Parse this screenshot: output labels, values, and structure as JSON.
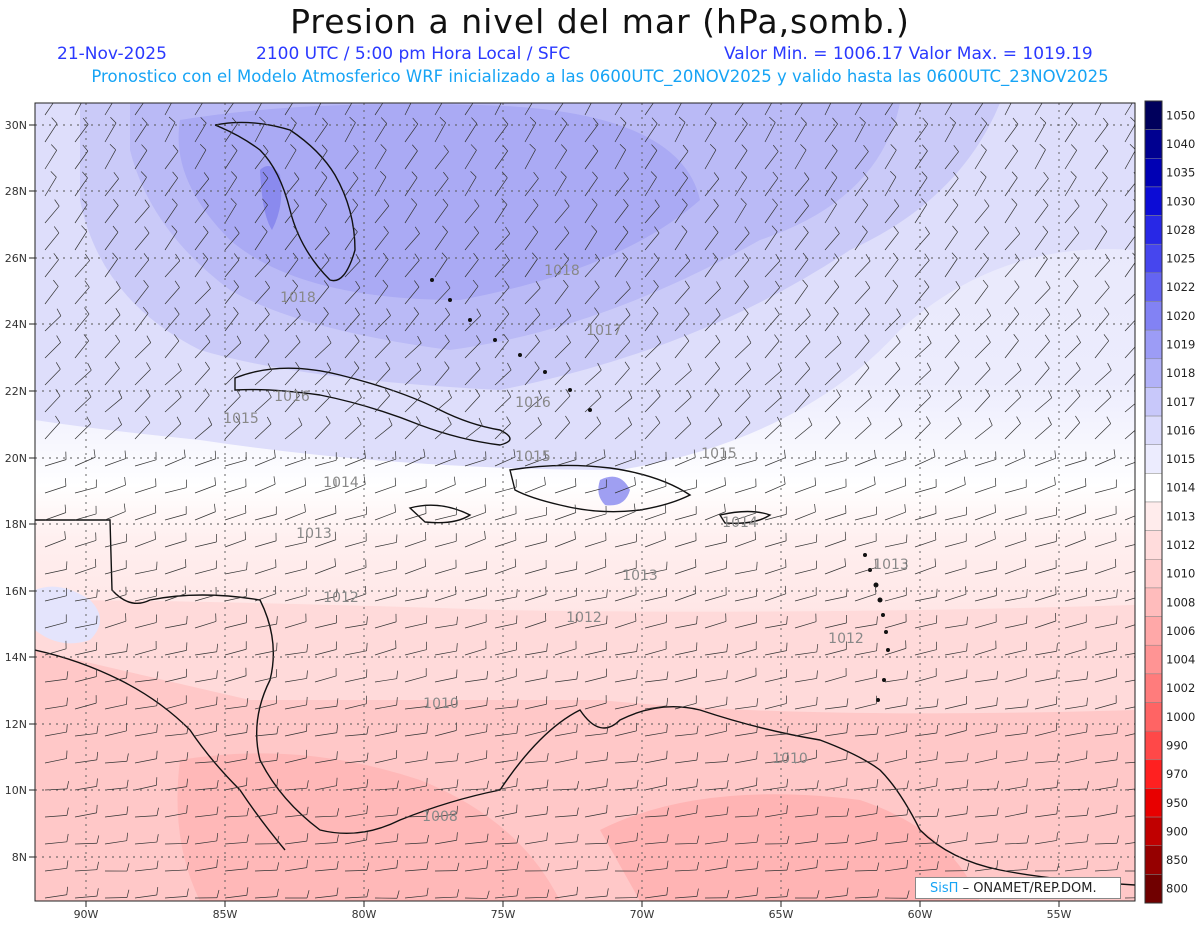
{
  "header": {
    "title": "Presion a nivel del mar (hPa,somb.)",
    "date": "21-Nov-2025",
    "time": "2100 UTC / 5:00 pm Hora Local / SFC",
    "minmax": "Valor Min. = 1006.17  Valor Max. = 1019.19",
    "model_info": "Pronostico con el Modelo Atmosferico WRF inicializado a las 0600UTC_20NOV2025 y valido hasta las  0600UTC_23NOV2025"
  },
  "axes": {
    "lat_labels": [
      "30N",
      "28N",
      "26N",
      "24N",
      "22N",
      "20N",
      "18N",
      "16N",
      "14N",
      "12N",
      "10N",
      "8N"
    ],
    "lon_labels": [
      "90W",
      "85W",
      "80W",
      "75W",
      "70W",
      "65W",
      "60W",
      "55W"
    ]
  },
  "contour_labels": [
    "1018",
    "1018",
    "1017",
    "1016",
    "1016",
    "1015",
    "1015",
    "1015",
    "1014",
    "1014",
    "1013",
    "1013",
    "1013",
    "1012",
    "1012",
    "1012",
    "1010",
    "1010",
    "1008"
  ],
  "colorbar": {
    "labels": [
      "1050",
      "1040",
      "1035",
      "1030",
      "1028",
      "1025",
      "1022",
      "1020",
      "1019",
      "1018",
      "1017",
      "1016",
      "1015",
      "1014",
      "1013",
      "1012",
      "1010",
      "1008",
      "1006",
      "1004",
      "1002",
      "1000",
      "990",
      "970",
      "950",
      "900",
      "850",
      "800"
    ],
    "colors": [
      "#00005c",
      "#000090",
      "#0000b4",
      "#0c0cd6",
      "#2828e6",
      "#4646ee",
      "#6464f2",
      "#8282f4",
      "#9c9cf6",
      "#b2b2f8",
      "#c8c8fa",
      "#dcdcfc",
      "#ececfe",
      "#ffffff",
      "#ffecec",
      "#ffdcdc",
      "#ffcccc",
      "#ffbcbc",
      "#ffa8a8",
      "#ff9494",
      "#ff7c7c",
      "#ff6464",
      "#ff4848",
      "#ff2020",
      "#e80000",
      "#c00000",
      "#960000",
      "#700000"
    ]
  },
  "credit": {
    "brand": "SisΠ",
    "text": "– ONAMET/REP.DOM."
  }
}
